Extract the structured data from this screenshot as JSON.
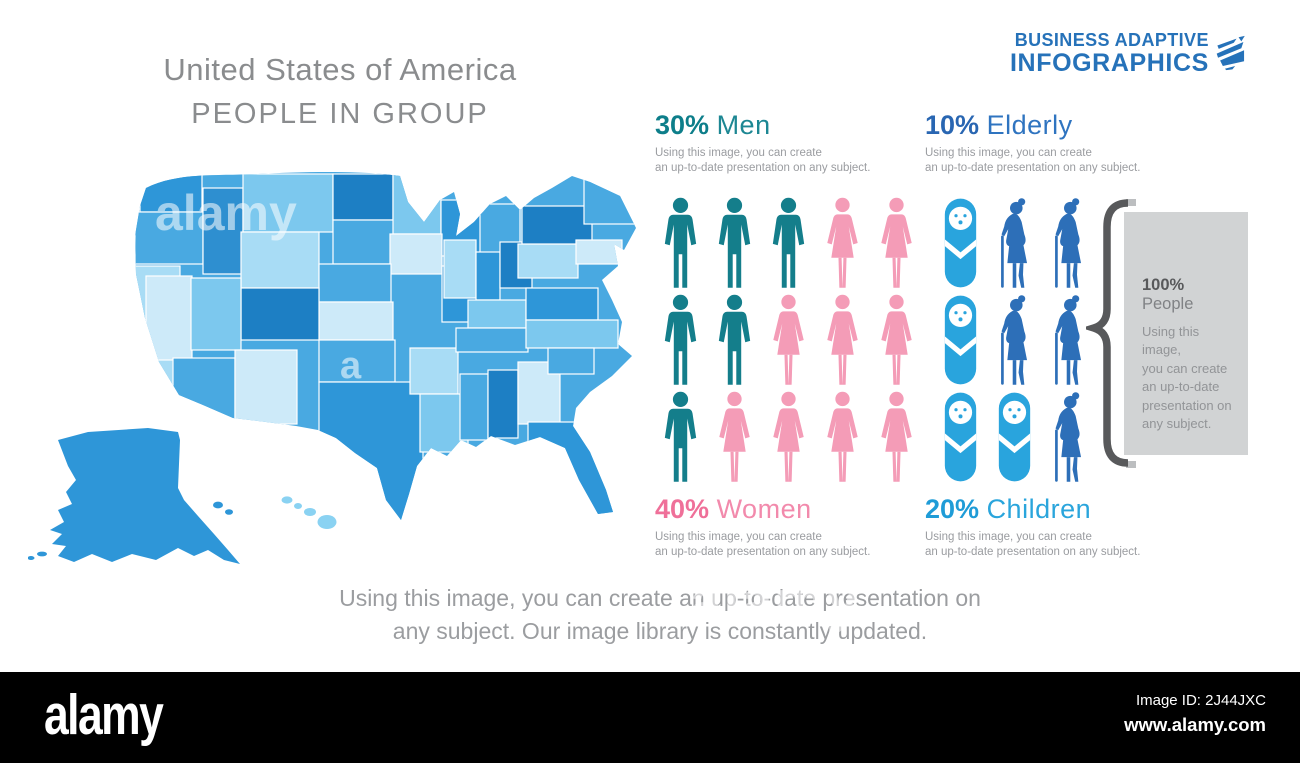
{
  "title": {
    "line1": "United States of America",
    "line2": "PEOPLE IN GROUP"
  },
  "logo": {
    "line1": "BUSINESS ADAPTIVE",
    "line2": "INFOGRAPHICS"
  },
  "stats": [
    {
      "id": "men",
      "percent": "30%",
      "label": "Men",
      "percent_color": "#0d7e8a",
      "label_color": "#1d8793",
      "desc_line1": "Using this image, you can create",
      "desc_line2": "an up-to-date presentation on any subject."
    },
    {
      "id": "elderly",
      "percent": "10%",
      "label": "Elderly",
      "percent_color": "#2966b2",
      "label_color": "#2f74c0",
      "desc_line1": "Using this image, you can create",
      "desc_line2": "an up-to-date presentation on any subject."
    },
    {
      "id": "women",
      "percent": "40%",
      "label": "Women",
      "percent_color": "#ef7099",
      "label_color": "#f28aac",
      "desc_line1": "Using this image, you can create",
      "desc_line2": "an up-to-date presentation on any subject."
    },
    {
      "id": "children",
      "percent": "20%",
      "label": "Children",
      "percent_color": "#1f9cd7",
      "label_color": "#2aa5dc",
      "desc_line1": "Using this image, you can create",
      "desc_line2": "an up-to-date presentation on any subject."
    }
  ],
  "summary": {
    "percent": "100%",
    "label": "People",
    "lines": [
      "Using this image,",
      "you can create",
      "an up-to-date",
      "presentation on",
      "any subject."
    ]
  },
  "caption": {
    "line1": "Using this image, you can create an up-to-date presentation on",
    "line2": "any subject. Our image library is constantly updated."
  },
  "watermark": {
    "brand": "alamy",
    "map_text": "alamy",
    "map_letter": "a",
    "image_id": "Image ID: 2J44JXC",
    "url": "www.alamy.com"
  },
  "colors": {
    "man": "#147e8b",
    "woman": "#f49cb7",
    "baby": "#29a4dd",
    "elderly": "#2d6fb8",
    "logo_blue": "#2672b9",
    "title_gray": "#8a8c8e",
    "brace_gray": "#58595b",
    "summary_bg": "#d1d3d4",
    "bar_bg": "#000000"
  },
  "map": {
    "region": "United States of America choropleth",
    "palette": [
      "#cdeaf9",
      "#a8dcf5",
      "#7cc8ee",
      "#49a9e1",
      "#2e96d8",
      "#1d7fc4"
    ]
  },
  "chart_data": {
    "type": "pictograph",
    "title": "United States of America — People in Group",
    "categories": [
      "Men",
      "Elderly",
      "Women",
      "Children"
    ],
    "values": [
      30,
      10,
      40,
      20
    ],
    "units": "percent",
    "total": {
      "label": "People",
      "value": 100
    },
    "legend_position": "corner-labels-around-icon-grid",
    "icon_grid": {
      "rows": [
        [
          "man",
          "man",
          "man",
          "woman",
          "woman",
          "baby",
          "elderly",
          "elderly"
        ],
        [
          "man",
          "man",
          "woman",
          "woman",
          "woman",
          "baby",
          "elderly",
          "elderly"
        ],
        [
          "man",
          "woman",
          "woman",
          "woman",
          "woman",
          "baby",
          "baby",
          "elderly"
        ]
      ]
    }
  }
}
